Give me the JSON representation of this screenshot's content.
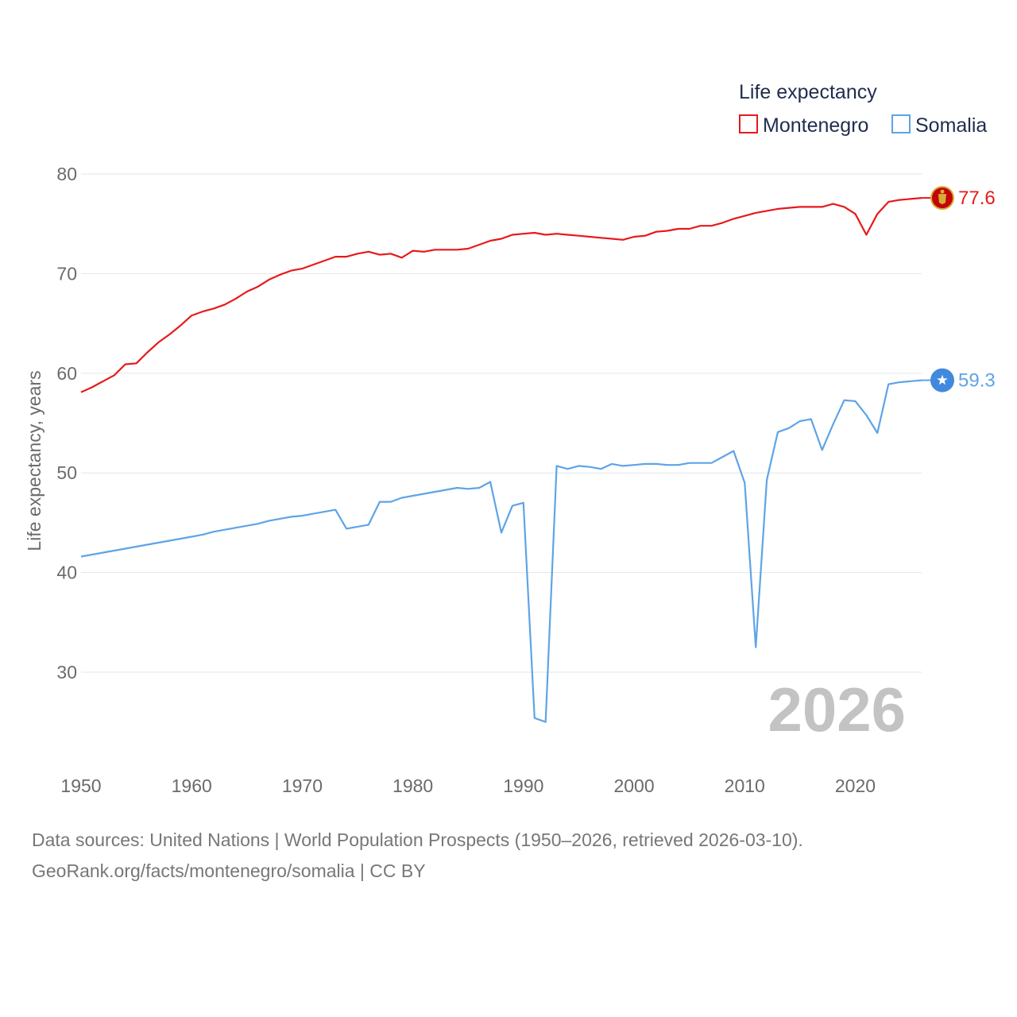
{
  "chart_data": {
    "type": "line",
    "legend_title": "Life expectancy",
    "ylabel": "Life expectancy, years",
    "xlim": [
      1950,
      2026
    ],
    "ylim": [
      20,
      83
    ],
    "yticks": [
      30,
      40,
      50,
      60,
      70,
      80
    ],
    "xticks": [
      1950,
      1960,
      1970,
      1980,
      1990,
      2000,
      2010,
      2020
    ],
    "year_label": "2026",
    "legend_placement": "top-right",
    "x": [
      1950,
      1951,
      1952,
      1953,
      1954,
      1955,
      1956,
      1957,
      1958,
      1959,
      1960,
      1961,
      1962,
      1963,
      1964,
      1965,
      1966,
      1967,
      1968,
      1969,
      1970,
      1971,
      1972,
      1973,
      1974,
      1975,
      1976,
      1977,
      1978,
      1979,
      1980,
      1981,
      1982,
      1983,
      1984,
      1985,
      1986,
      1987,
      1988,
      1989,
      1990,
      1991,
      1992,
      1993,
      1994,
      1995,
      1996,
      1997,
      1998,
      1999,
      2000,
      2001,
      2002,
      2003,
      2004,
      2005,
      2006,
      2007,
      2008,
      2009,
      2010,
      2011,
      2012,
      2013,
      2014,
      2015,
      2016,
      2017,
      2018,
      2019,
      2020,
      2021,
      2022,
      2023,
      2024,
      2025,
      2026
    ],
    "series": [
      {
        "name": "Montenegro",
        "color": "#e8191c",
        "end_label": "77.6",
        "end_icon": "montenegro-flag-icon",
        "values": [
          58.1,
          58.6,
          59.2,
          59.8,
          60.9,
          61.0,
          62.1,
          63.1,
          63.9,
          64.8,
          65.8,
          66.2,
          66.5,
          66.9,
          67.5,
          68.2,
          68.7,
          69.4,
          69.9,
          70.3,
          70.5,
          70.9,
          71.3,
          71.7,
          71.7,
          72.0,
          72.2,
          71.9,
          72.0,
          71.6,
          72.3,
          72.2,
          72.4,
          72.4,
          72.4,
          72.5,
          72.9,
          73.3,
          73.5,
          73.9,
          74.0,
          74.1,
          73.9,
          74.0,
          73.9,
          73.8,
          73.7,
          73.6,
          73.5,
          73.4,
          73.7,
          73.8,
          74.2,
          74.3,
          74.5,
          74.5,
          74.8,
          74.8,
          75.1,
          75.5,
          75.8,
          76.1,
          76.3,
          76.5,
          76.6,
          76.7,
          76.7,
          76.7,
          77.0,
          76.7,
          76.0,
          73.9,
          76.0,
          77.2,
          77.4,
          77.5,
          77.6
        ]
      },
      {
        "name": "Somalia",
        "color": "#5ea4e7",
        "end_label": "59.3",
        "end_icon": "somalia-flag-icon",
        "values": [
          41.6,
          41.8,
          42.0,
          42.2,
          42.4,
          42.6,
          42.8,
          43.0,
          43.2,
          43.4,
          43.6,
          43.8,
          44.1,
          44.3,
          44.5,
          44.7,
          44.9,
          45.2,
          45.4,
          45.6,
          45.7,
          45.9,
          46.1,
          46.3,
          44.4,
          44.6,
          44.8,
          47.1,
          47.1,
          47.5,
          47.7,
          47.9,
          48.1,
          48.3,
          48.5,
          48.4,
          48.5,
          49.1,
          44.0,
          46.7,
          47.0,
          25.4,
          25.0,
          50.7,
          50.4,
          50.7,
          50.6,
          50.4,
          50.9,
          50.7,
          50.8,
          50.9,
          50.9,
          50.8,
          50.8,
          51.0,
          51.0,
          51.0,
          51.6,
          52.2,
          49.0,
          32.5,
          49.3,
          54.1,
          54.5,
          55.2,
          55.4,
          52.3,
          54.9,
          57.3,
          57.2,
          55.8,
          54.0,
          58.9,
          59.1,
          59.2,
          59.3
        ]
      }
    ]
  },
  "source": {
    "line1": "Data sources: United Nations | World Population Prospects (1950–2026, retrieved 2026-03-10).",
    "line2": "GeoRank.org/facts/montenegro/somalia | CC BY"
  }
}
